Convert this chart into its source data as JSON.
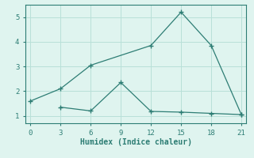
{
  "xlabel": "Humidex (Indice chaleur)",
  "line1_x": [
    0,
    3,
    6,
    12,
    15,
    18,
    21
  ],
  "line1_y": [
    1.6,
    2.1,
    3.05,
    3.85,
    5.2,
    3.85,
    1.05
  ],
  "line2_x": [
    3,
    6,
    9,
    12,
    15,
    18,
    21
  ],
  "line2_y": [
    1.35,
    1.2,
    2.35,
    1.18,
    1.15,
    1.1,
    1.05
  ],
  "line_color": "#2d7d74",
  "bg_color": "#dff4ef",
  "grid_color": "#b8e0d8",
  "xlim": [
    -0.5,
    21.5
  ],
  "ylim": [
    0.7,
    5.5
  ],
  "xticks": [
    0,
    3,
    6,
    9,
    12,
    15,
    18,
    21
  ],
  "yticks": [
    1,
    2,
    3,
    4,
    5
  ],
  "marker": "+"
}
